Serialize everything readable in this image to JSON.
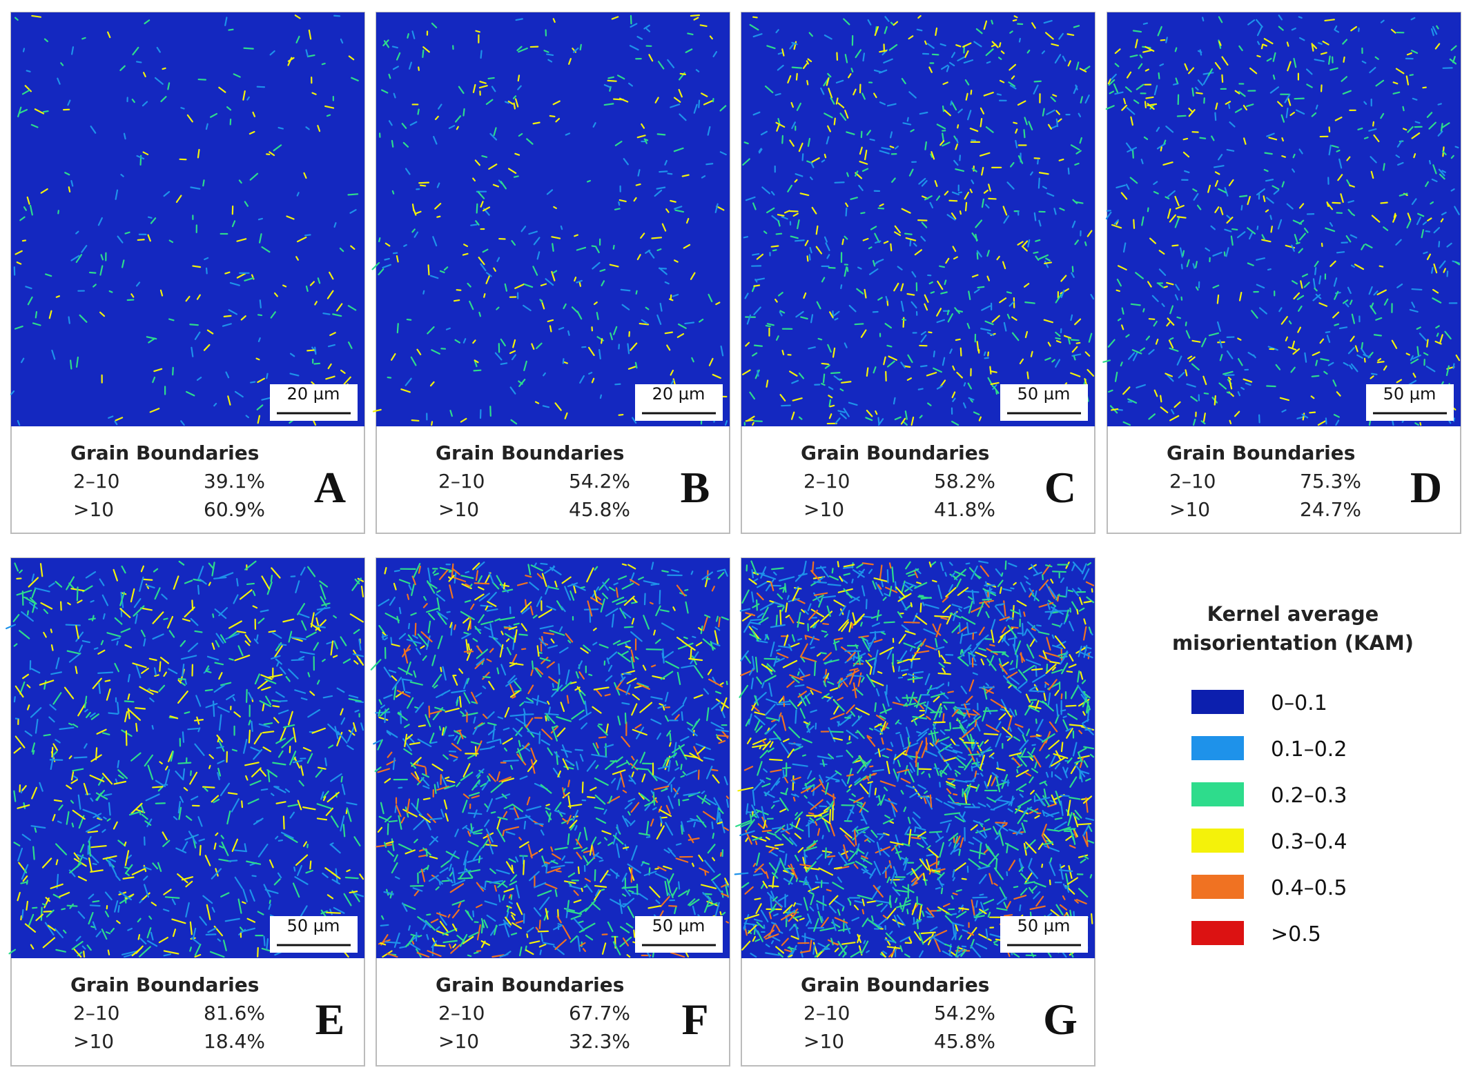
{
  "panels": [
    {
      "label": "A",
      "scale_bar": "20 µm",
      "heading": "Grain Boundaries",
      "rows": [
        [
          "2–10",
          "39.1%"
        ],
        [
          ">10",
          "60.9%"
        ]
      ]
    },
    {
      "label": "B",
      "scale_bar": "20 µm",
      "heading": "Grain Boundaries",
      "rows": [
        [
          "2–10",
          "54.2%"
        ],
        [
          ">10",
          "45.8%"
        ]
      ]
    },
    {
      "label": "C",
      "scale_bar": "50 µm",
      "heading": "Grain Boundaries",
      "rows": [
        [
          "2–10",
          "58.2%"
        ],
        [
          ">10",
          "41.8%"
        ]
      ]
    },
    {
      "label": "D",
      "scale_bar": "50 µm",
      "heading": "Grain Boundaries",
      "rows": [
        [
          "2–10",
          "75.3%"
        ],
        [
          ">10",
          "24.7%"
        ]
      ]
    },
    {
      "label": "E",
      "scale_bar": "50 µm",
      "heading": "Grain Boundaries",
      "rows": [
        [
          "2–10",
          "81.6%"
        ],
        [
          ">10",
          "18.4%"
        ]
      ]
    },
    {
      "label": "F",
      "scale_bar": "50 µm",
      "heading": "Grain Boundaries",
      "rows": [
        [
          "2–10",
          "67.7%"
        ],
        [
          ">10",
          "32.3%"
        ]
      ]
    },
    {
      "label": "G",
      "scale_bar": "50 µm",
      "heading": "Grain Boundaries",
      "rows": [
        [
          "2–10",
          "54.2%"
        ],
        [
          ">10",
          "45.8%"
        ]
      ]
    }
  ],
  "legend": {
    "title": [
      "Kernel average",
      "misorientation (KAM)"
    ],
    "items": [
      {
        "label": "0–0.1",
        "color": "#0c1fae"
      },
      {
        "label": "0.1–0.2",
        "color": "#1e92ea"
      },
      {
        "label": "0.2–0.3",
        "color": "#2edc8c"
      },
      {
        "label": "0.3–0.4",
        "color": "#f4f20a"
      },
      {
        "label": "0.4–0.5",
        "color": "#f07222"
      },
      {
        "label": ">0.5",
        "color": "#dc1212"
      }
    ]
  }
}
